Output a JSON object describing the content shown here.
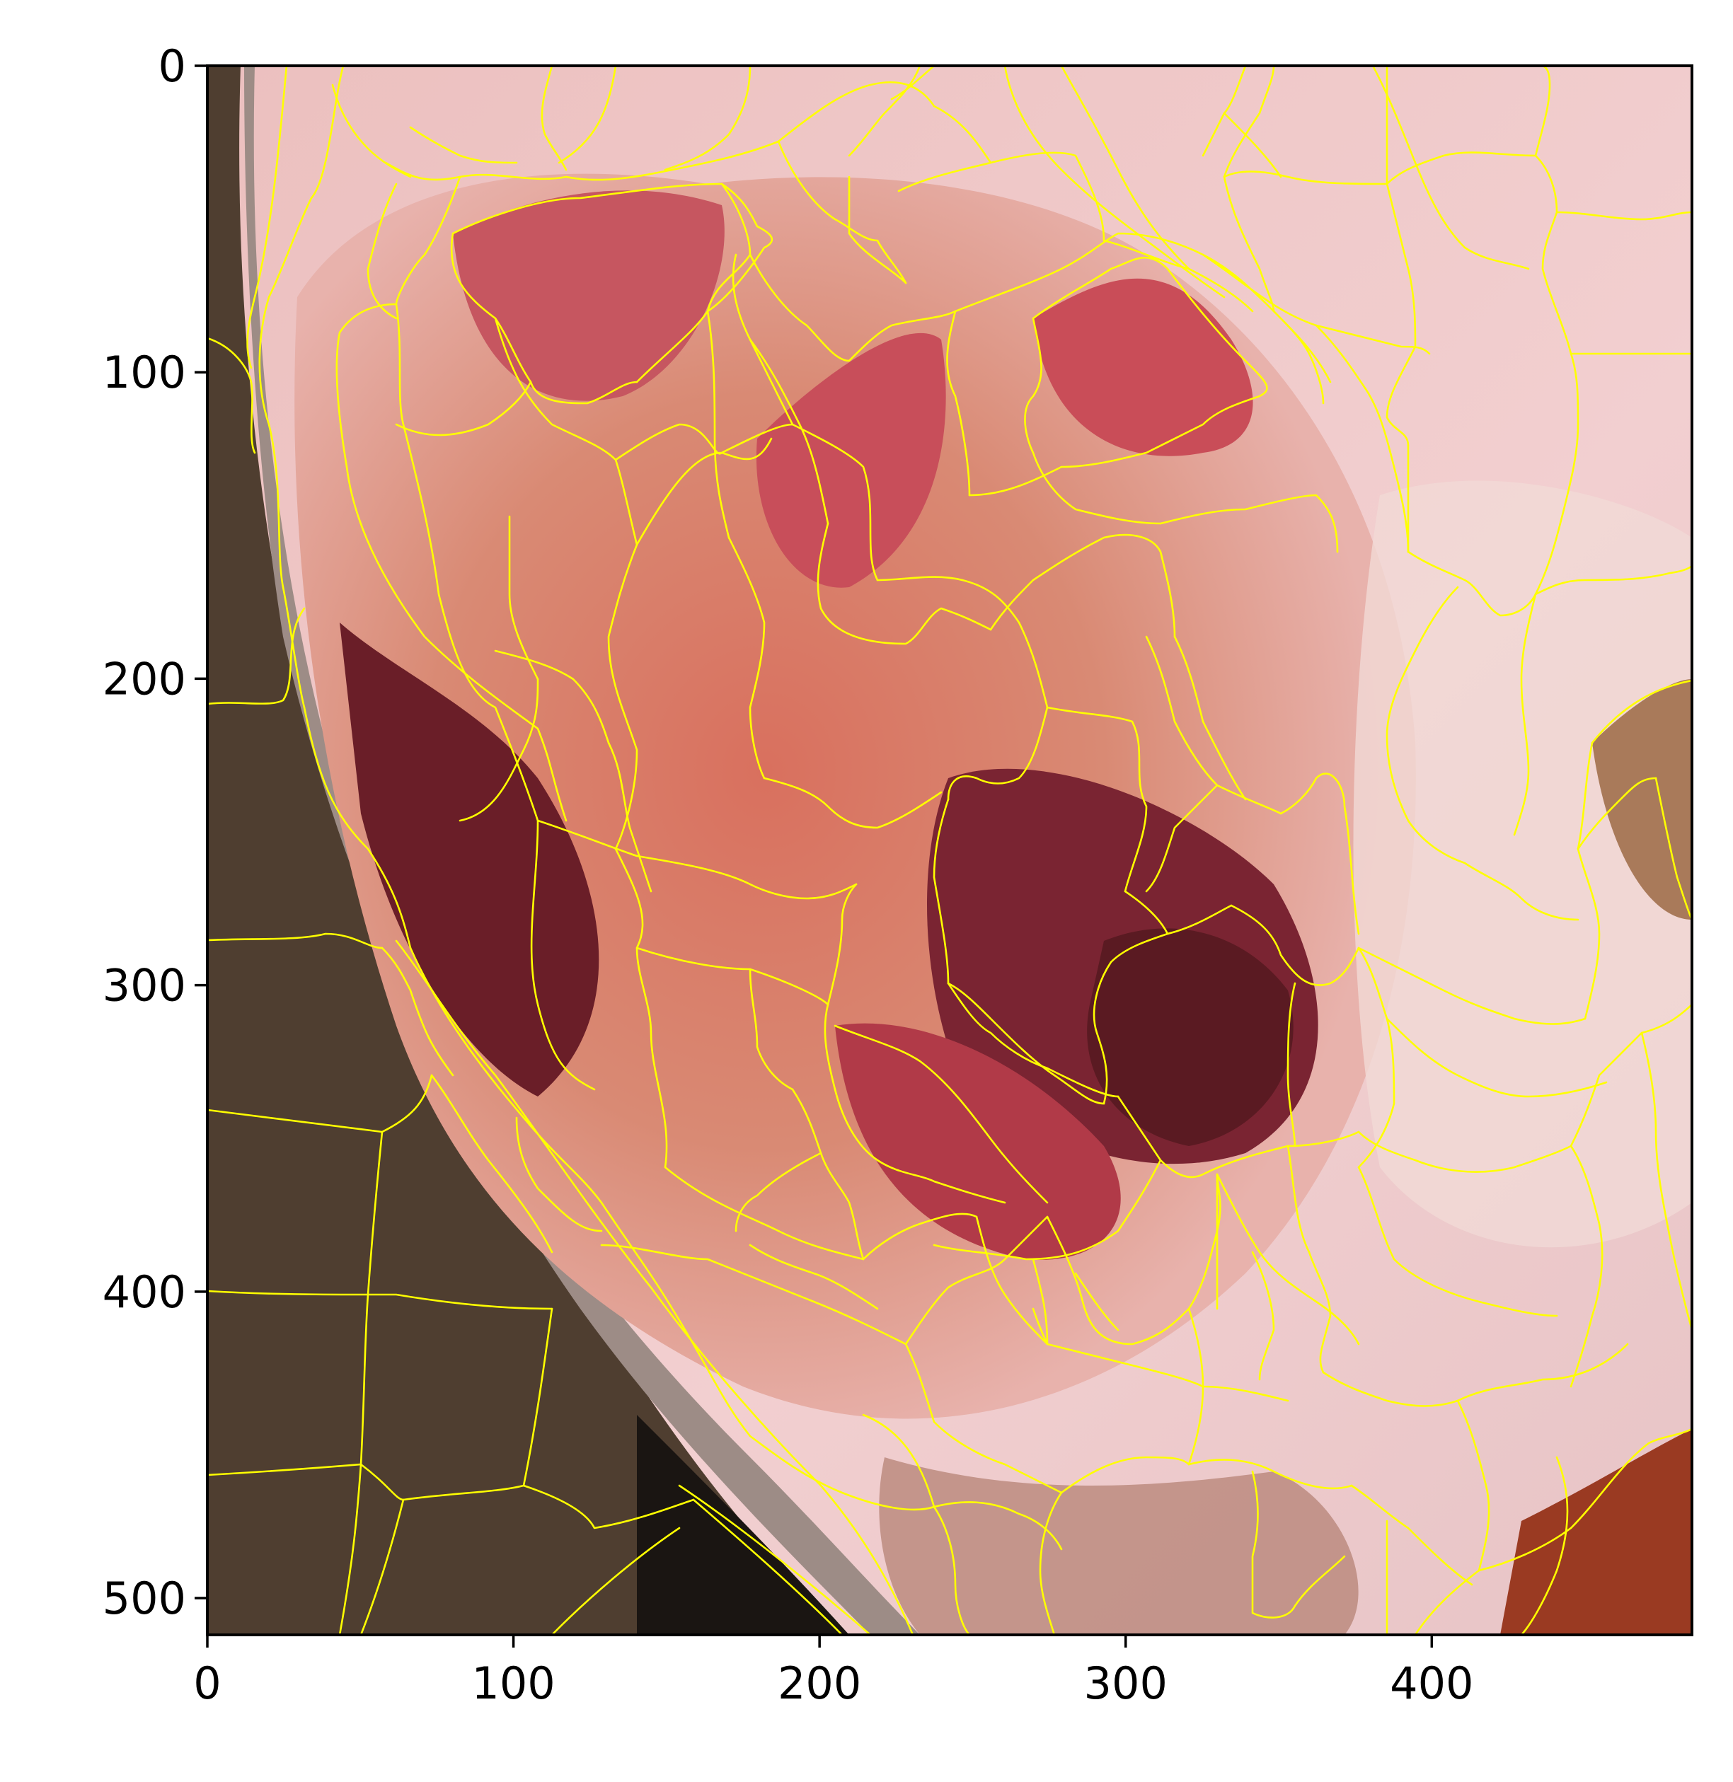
{
  "image": {
    "description_colors": {
      "segment_boundary": "#ffff00",
      "skin_light": "#f0c4c4",
      "lesion_red": "#c0485a",
      "lesion_dark": "#5a1a22",
      "lesion_orange": "#e89a78",
      "background_dark": "#4a3a2e",
      "frame": "#000000"
    }
  },
  "axes": {
    "x_ticks": [
      "0",
      "100",
      "200",
      "300",
      "400"
    ],
    "y_ticks": [
      "0",
      "100",
      "200",
      "300",
      "400",
      "500"
    ],
    "x_range": [
      0,
      485
    ],
    "y_range": [
      0,
      512
    ]
  }
}
